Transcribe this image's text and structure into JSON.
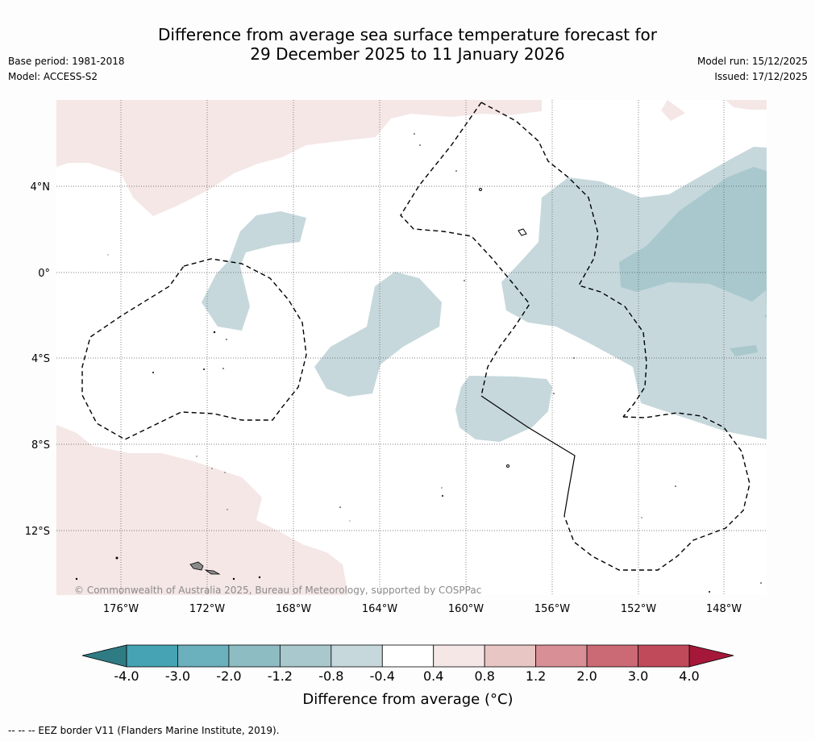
{
  "title": {
    "line1": "Difference from average sea surface temperature forecast for",
    "line2": "29 December 2025 to 11 January 2026"
  },
  "meta": {
    "base_period": "Base period: 1981-2018",
    "model": "Model: ACCESS-S2",
    "model_run": "Model run: 15/12/2025",
    "issued": "Issued: 17/12/2025"
  },
  "map": {
    "lon_labels": [
      "176°W",
      "172°W",
      "168°W",
      "164°W",
      "160°W",
      "156°W",
      "152°W",
      "148°W"
    ],
    "lat_labels": [
      "4°N",
      "0°",
      "4°S",
      "8°S",
      "12°S"
    ],
    "copyright": "© Commonwealth of Australia 2025, Bureau of Meteorology, supported by COSPPac"
  },
  "colorbar": {
    "ticks": [
      "-4.0",
      "-3.0",
      "-2.0",
      "-1.2",
      "-0.8",
      "-0.4",
      "0.4",
      "0.8",
      "1.2",
      "2.0",
      "3.0",
      "4.0"
    ],
    "colors": [
      "#46a3b3",
      "#6ab0bd",
      "#8ebcc3",
      "#a8c8cd",
      "#c6d8dc",
      "#ffffff",
      "#f4e7e6",
      "#e8c6c3",
      "#d88f95",
      "#cb6a75",
      "#c04a59"
    ],
    "under_color": "#2e7b84",
    "over_color": "#a5183a",
    "label": "Difference from average (°C)"
  },
  "footer": "--  --  -- EEZ border V11 (Flanders Marine Institute, 2019)."
}
